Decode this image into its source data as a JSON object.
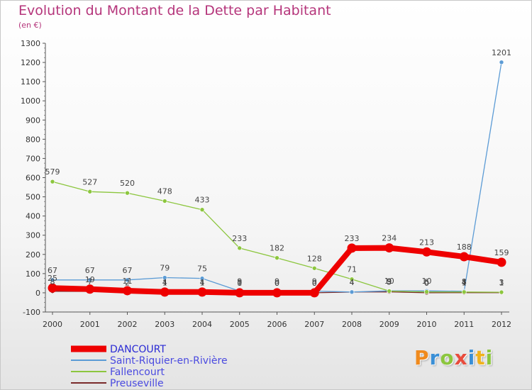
{
  "header": {
    "title": "Evolution du Montant de la Dette par Habitant",
    "subtitle": "(en €)"
  },
  "logo": {
    "text": "Proxiti",
    "letters": [
      {
        "char": "P",
        "color": "#f08a1d"
      },
      {
        "char": "r",
        "color": "#3a8fd6"
      },
      {
        "char": "o",
        "color": "#8cc63e"
      },
      {
        "char": "x",
        "color": "#e84c3d"
      },
      {
        "char": "i",
        "color": "#3a8fd6"
      },
      {
        "char": "t",
        "color": "#f0b21d"
      },
      {
        "char": "i",
        "color": "#8cc63e"
      }
    ]
  },
  "chart_data": {
    "type": "line",
    "title": "Evolution du Montant de la Dette par Habitant",
    "subtitle": "(en €)",
    "xlabel": "",
    "ylabel": "",
    "x": [
      "2000",
      "2001",
      "2002",
      "2003",
      "2004",
      "2005",
      "2006",
      "2007",
      "2008",
      "2009",
      "2010",
      "2011",
      "2012"
    ],
    "ylim": [
      -100,
      1300
    ],
    "yticks": [
      -100,
      0,
      100,
      200,
      300,
      400,
      500,
      600,
      700,
      800,
      900,
      1000,
      1100,
      1200,
      1300
    ],
    "grid": false,
    "legend_position": "bottom-left",
    "series": [
      {
        "name": "DANCOURT",
        "color": "#ee0000",
        "values": [
          25,
          19,
          11,
          4,
          4,
          0,
          0,
          0,
          233,
          234,
          213,
          188,
          159
        ],
        "labels": [
          "25",
          "19",
          "11",
          "4",
          "4",
          "0",
          "0",
          "0",
          "233",
          "234",
          "213",
          "188",
          "159"
        ]
      },
      {
        "name": "Saint-Riquier-en-Rivière",
        "color": "#5b9bd5",
        "values": [
          67,
          67,
          67,
          79,
          75,
          9,
          9,
          9,
          4,
          10,
          10,
          8,
          1201
        ],
        "labels": [
          "67",
          "67",
          "67",
          "79",
          "75",
          "9",
          "9",
          "9",
          "4",
          "10",
          "10",
          "8",
          "1201"
        ]
      },
      {
        "name": "Fallencourt",
        "color": "#8cc63e",
        "values": [
          579,
          527,
          520,
          478,
          433,
          233,
          182,
          128,
          71,
          9,
          5,
          4,
          3
        ],
        "labels": [
          "579",
          "527",
          "520",
          "478",
          "433",
          "233",
          "182",
          "128",
          "71",
          "9",
          "5",
          "4",
          "3"
        ]
      },
      {
        "name": "Preuseville",
        "color": "#7a2a2a",
        "values": [
          8,
          7,
          2,
          1,
          1,
          1,
          0,
          0,
          4,
          5,
          0,
          1,
          1
        ],
        "labels": [
          "8",
          "7",
          "2",
          "1",
          "1",
          "1",
          "0",
          "0",
          "4",
          "5",
          "0",
          "1",
          "1"
        ]
      }
    ]
  }
}
